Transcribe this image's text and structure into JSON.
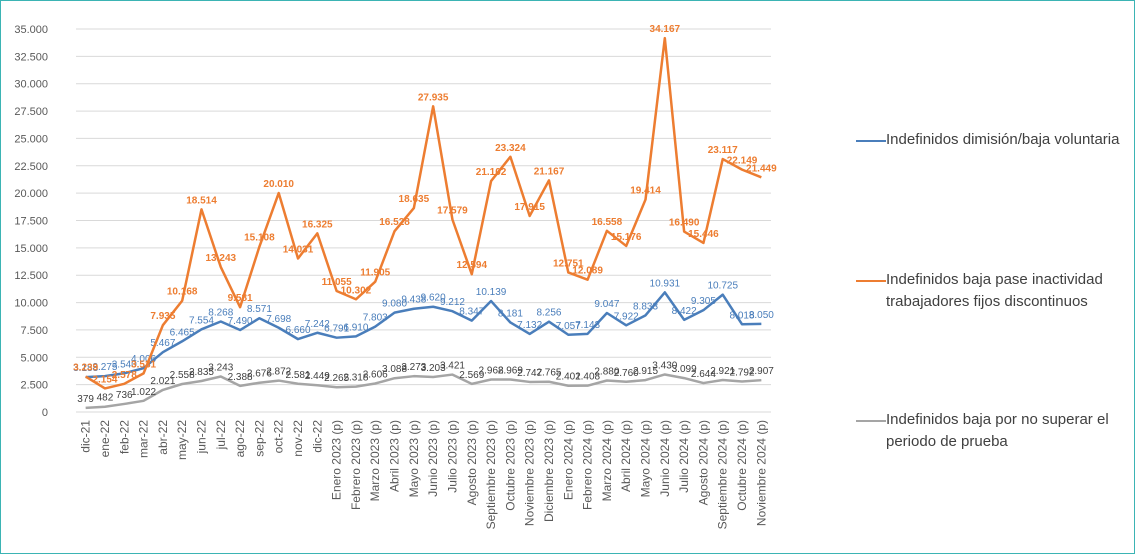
{
  "chart_data": {
    "type": "line",
    "categories": [
      "dic-21",
      "ene-22",
      "feb-22",
      "mar-22",
      "abr-22",
      "may-22",
      "jun-22",
      "jul-22",
      "ago-22",
      "sep-22",
      "oct-22",
      "nov-22",
      "dic-22",
      "Enero 2023 (p)",
      "Febrero 2023 (p)",
      "Marzo 2023 (p)",
      "Abril 2023 (p)",
      "Mayo 2023 (p)",
      "Junio 2023 (p)",
      "Julio 2023 (p)",
      "Agosto 2023 (p)",
      "Septiembre 2023 (p)",
      "Octubre 2023 (p)",
      "Noviembre 2023 (p)",
      "Diciembre 2023 (p)",
      "Enero 2024 (p)",
      "Febrero 2024 (p)",
      "Marzo 2024 (p)",
      "Abril 2024 (p)",
      "Mayo 2024 (p)",
      "Junio 2024 (p)",
      "Julio 2024 (p)",
      "Agosto 2024 (p)",
      "Septiembre 2024 (p)",
      "Octubre 2024 (p)",
      "Noviembre 2024 (p)"
    ],
    "series": [
      {
        "name": "Indefinidos dimisión/baja voluntaria",
        "color": "#4a7ebb",
        "values": [
          3188,
          3275,
          3540,
          4006,
          5467,
          6465,
          7554,
          8268,
          7490,
          8571,
          7698,
          6660,
          7242,
          6791,
          6910,
          7803,
          9080,
          9438,
          9620,
          9212,
          8347,
          10139,
          8181,
          7132,
          8256,
          7057,
          7143,
          9047,
          7922,
          8833,
          10931,
          8422,
          9305,
          10725,
          8018,
          8050
        ],
        "value_labels": [
          "3.188",
          "3.275",
          "3.540",
          "4.006",
          "5.467",
          "6.465",
          "7.554",
          "8.268",
          "7.490",
          "8.571",
          "7.698",
          "6.660",
          "7.242",
          "6.791",
          "6.910",
          "7.803",
          "9.080",
          "9.438",
          "9.620",
          "9.212",
          "8.347",
          "10.139",
          "8.181",
          "7.132",
          "8.256",
          "7.057",
          "7.143",
          "9.047",
          "7.922",
          "8.833",
          "10.931",
          "8.422",
          "9.305",
          "10.725",
          "8.018",
          "8.050"
        ]
      },
      {
        "name": "Indefinidos baja pase inactividad trabajadores fijos discontinuos",
        "color": "#ed7d31",
        "values": [
          3239,
          2154,
          2578,
          3531,
          7935,
          10168,
          18514,
          13243,
          9581,
          15108,
          20010,
          14031,
          16325,
          11055,
          10302,
          11905,
          16528,
          18635,
          27935,
          17579,
          12594,
          21102,
          23324,
          17915,
          21167,
          12751,
          12089,
          16558,
          15176,
          19414,
          34167,
          16490,
          15446,
          23117,
          22149,
          21449
        ],
        "value_labels": [
          "3.239",
          "2.154",
          "2.578",
          "3.531",
          "7.935",
          "10.168",
          "18.514",
          "13.243",
          "9.581",
          "15.108",
          "20.010",
          "14.031",
          "16.325",
          "11.055",
          "10.302",
          "11.905",
          "16.528",
          "18.635",
          "27.935",
          "17.579",
          "12.594",
          "21.102",
          "23.324",
          "17.915",
          "21.167",
          "12.751",
          "12.089",
          "16.558",
          "15.176",
          "19.414",
          "34.167",
          "16.490",
          "15.446",
          "23.117",
          "22.149",
          "21.449"
        ]
      },
      {
        "name": "Indefinidos baja por no superar el periodo de prueba",
        "color": "#a5a5a5",
        "values": [
          379,
          482,
          736,
          1022,
          2021,
          2558,
          2835,
          3243,
          2388,
          2676,
          2872,
          2581,
          2449,
          2265,
          2318,
          2606,
          3088,
          3273,
          3203,
          3421,
          2569,
          2968,
          2969,
          2747,
          2765,
          2401,
          2408,
          2880,
          2760,
          2915,
          3430,
          3099,
          2644,
          2921,
          2792,
          2907
        ],
        "value_labels": [
          "379",
          "482",
          "736",
          "1.022",
          "2.021",
          "2.558",
          "2.835",
          "3.243",
          "2.388",
          "2.676",
          "2.872",
          "2.581",
          "2.449",
          "2.265",
          "2.318",
          "2.606",
          "3.088",
          "3.273",
          "3.203",
          "3.421",
          "2.569",
          "2.968",
          "2.969",
          "2.747",
          "2.765",
          "2.401",
          "2.408",
          "2.880",
          "2.760",
          "2.915",
          "3.430",
          "3.099",
          "2.644",
          "2.921",
          "2.792",
          "2.907"
        ]
      }
    ],
    "ylim": [
      0,
      35000
    ],
    "yticks": [
      0,
      {
        "value": 2500,
        "label": "2.500"
      },
      {
        "value": 5000,
        "label": "5.000"
      },
      {
        "value": 7500,
        "label": "7.500"
      },
      {
        "value": 10000,
        "label": "10.000"
      },
      {
        "value": 12500,
        "label": "12.500"
      },
      {
        "value": 15000,
        "label": "15.000"
      },
      {
        "value": 17500,
        "label": "17.500"
      },
      {
        "value": 20000,
        "label": "20.000"
      },
      {
        "value": 22500,
        "label": "22.500"
      },
      {
        "value": 25000,
        "label": "25.000"
      },
      {
        "value": 27500,
        "label": "27.500"
      },
      {
        "value": 30000,
        "label": "30.000"
      },
      {
        "value": 32500,
        "label": "32.500"
      },
      {
        "value": 35000,
        "label": "35.000"
      }
    ],
    "grid": true,
    "legend": "right"
  }
}
